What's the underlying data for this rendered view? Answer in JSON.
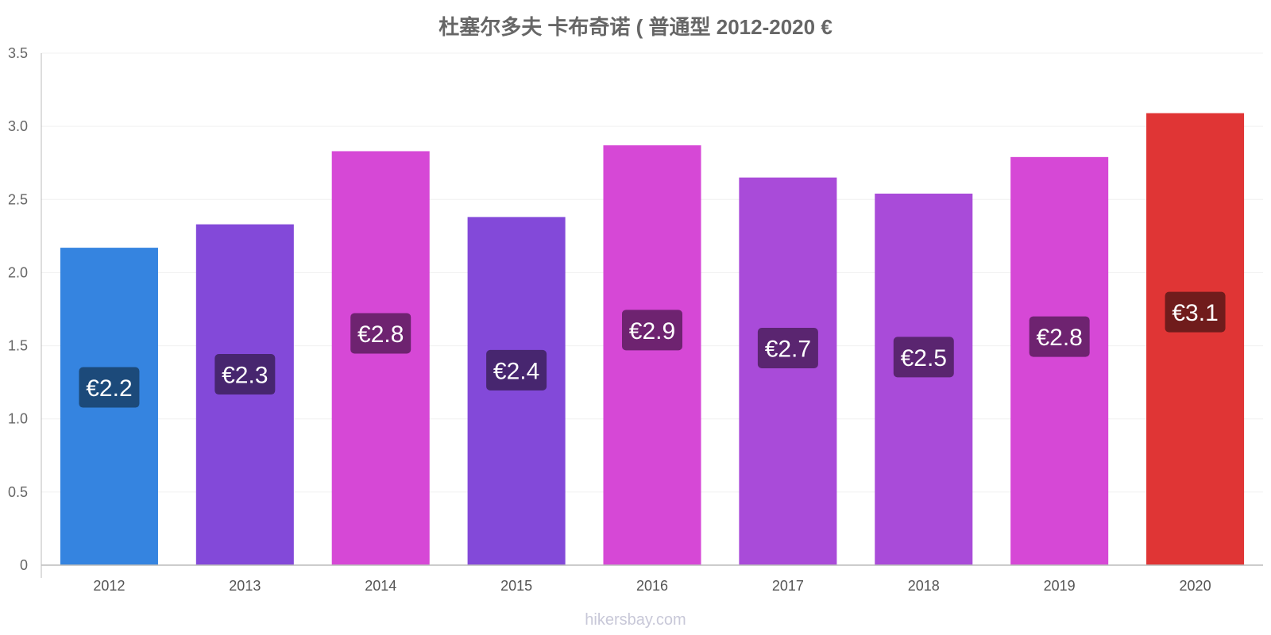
{
  "chart_data": {
    "type": "bar",
    "title": "杜塞尔多夫 卡布奇诺 ( 普通型 2012-2020 €",
    "xlabel": "",
    "ylabel": "",
    "ylim": [
      0,
      3.5
    ],
    "yticks": [
      0,
      0.5,
      1.0,
      1.5,
      2.0,
      2.5,
      3.0,
      3.5
    ],
    "ytick_labels": [
      "0",
      "0.5",
      "1.0",
      "1.5",
      "2.0",
      "2.5",
      "3.0",
      "3.5"
    ],
    "categories": [
      "2012",
      "2013",
      "2014",
      "2015",
      "2016",
      "2017",
      "2018",
      "2019",
      "2020"
    ],
    "values": [
      2.17,
      2.33,
      2.83,
      2.38,
      2.87,
      2.65,
      2.54,
      2.79,
      3.09
    ],
    "data_labels": [
      "€2.2",
      "€2.3",
      "€2.8",
      "€2.4",
      "€2.9",
      "€2.7",
      "€2.5",
      "€2.8",
      "€3.1"
    ],
    "bar_colors": [
      "#3584e0",
      "#8349d9",
      "#d648d6",
      "#8349d9",
      "#d648d6",
      "#a94bd9",
      "#a94bd9",
      "#d648d6",
      "#e03535"
    ],
    "label_bg_colors": [
      "#1c4a7a",
      "#47266f",
      "#6e2370",
      "#47266f",
      "#6e2370",
      "#5a2570",
      "#5a2570",
      "#6e2370",
      "#701c1c"
    ],
    "grid": true,
    "legend": "none"
  },
  "watermark": "hikersbay.com"
}
